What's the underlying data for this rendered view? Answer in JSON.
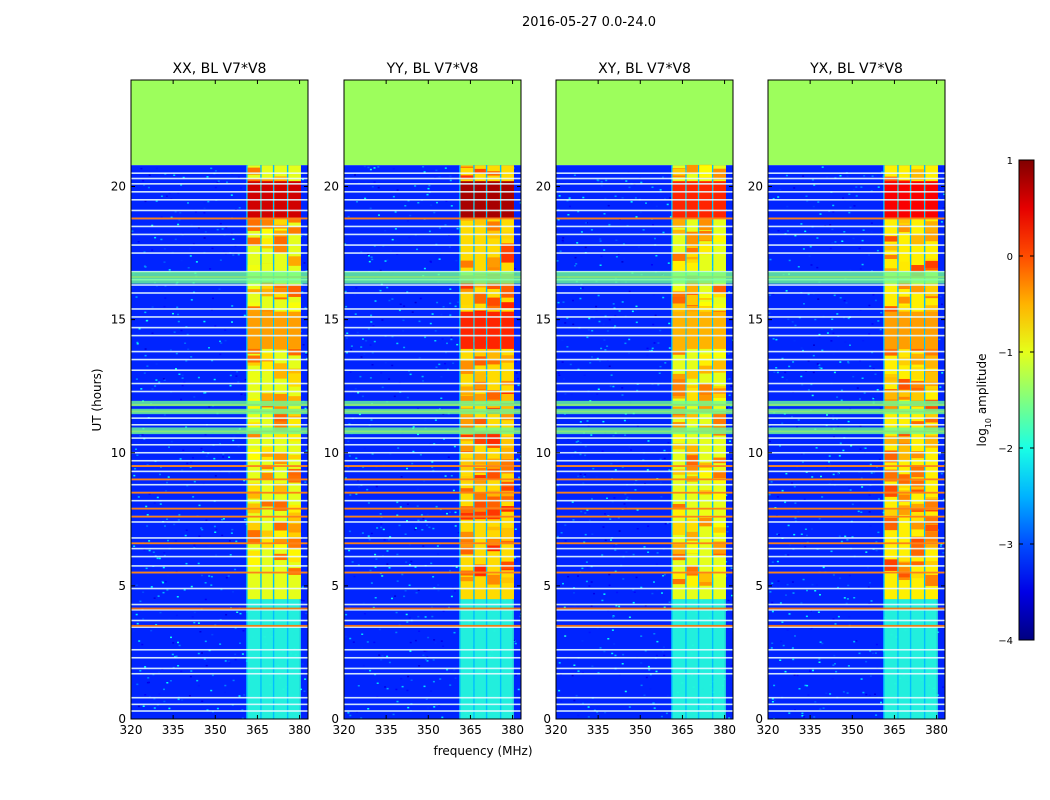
{
  "figure": {
    "title": "2016-05-27 0.0-24.0"
  },
  "chart_data": {
    "type": "heatmap",
    "xlabel": "frequency (MHz)",
    "ylabel": "UT (hours)",
    "xlim": [
      320,
      383
    ],
    "ylim": [
      0,
      24
    ],
    "xticks": [
      "320",
      "335",
      "350",
      "365",
      "380"
    ],
    "xtick_values": [
      320,
      335,
      350,
      365,
      380
    ],
    "yticks": [
      "0",
      "5",
      "10",
      "15",
      "20"
    ],
    "ytick_values": [
      0,
      5,
      10,
      15,
      20
    ],
    "data_end_hour": 20.8,
    "rfi_band_mhz": [
      361,
      380
    ],
    "rfi_channels_mhz": [
      [
        361.5,
        366
      ],
      [
        366.5,
        370.5
      ],
      [
        371,
        375.5
      ],
      [
        376,
        380.5
      ]
    ],
    "colorbar": {
      "label": "log10 amplitude",
      "label_main": "log",
      "label_sub": "10",
      "label_rest": " amplitude",
      "range": [
        -4,
        1
      ],
      "ticks": [
        "1",
        "0",
        "−1",
        "−2",
        "−3",
        "−4"
      ],
      "tick_values": [
        1,
        0,
        -1,
        -2,
        -3,
        -4
      ],
      "colormap": "jet"
    },
    "panels": [
      {
        "title": "XX, BL V7*V8",
        "polarization": "XX",
        "baseline": "V7*V8"
      },
      {
        "title": "YY, BL V7*V8",
        "polarization": "YY",
        "baseline": "V7*V8"
      },
      {
        "title": "XY, BL V7*V8",
        "polarization": "XY",
        "baseline": "V7*V8"
      },
      {
        "title": "YX, BL V7*V8",
        "polarization": "YX",
        "baseline": "V7*V8"
      }
    ]
  }
}
